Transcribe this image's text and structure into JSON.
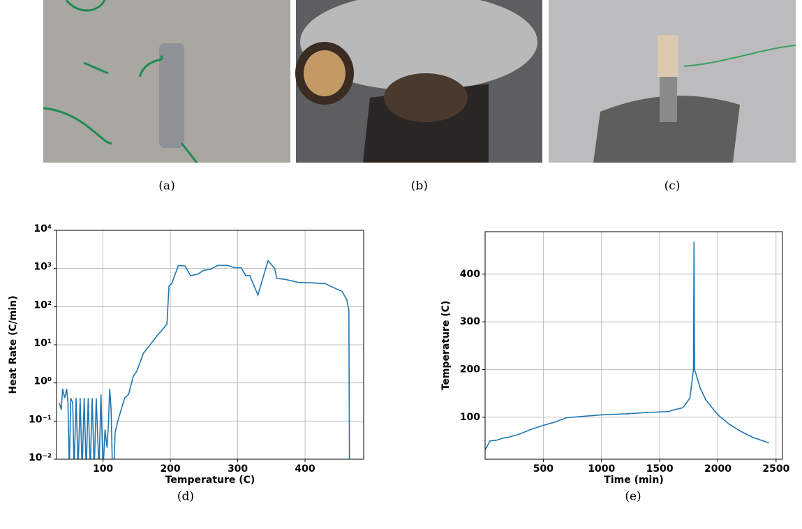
{
  "captions": [
    "(a)",
    "(b)",
    "(c)",
    "(d)",
    "(e)"
  ],
  "chart_data": [
    {
      "type": "line",
      "xlabel": "Temperature (C)",
      "ylabel": "Heat Rate (C/min)",
      "log_y": true,
      "grid": true,
      "xlim": [
        31,
        487
      ],
      "xticks": [
        100,
        200,
        300,
        400
      ],
      "ylim": [
        0.01,
        10000
      ],
      "yticks": [
        {
          "value": 0.01,
          "label": "10⁻²"
        },
        {
          "value": 0.1,
          "label": "10⁻¹"
        },
        {
          "value": 1,
          "label": "10⁰"
        },
        {
          "value": 10,
          "label": "10¹"
        },
        {
          "value": 100,
          "label": "10²"
        },
        {
          "value": 1000,
          "label": "10³"
        },
        {
          "value": 10000,
          "label": "10⁴"
        }
      ],
      "x": [
        35,
        38,
        40,
        43,
        46,
        48,
        50,
        52,
        55,
        57,
        60,
        63,
        66,
        69,
        72,
        75,
        78,
        81,
        84,
        87,
        90,
        94,
        97,
        100,
        103,
        106,
        108,
        110,
        112,
        114,
        116,
        118,
        122,
        127,
        132,
        138,
        145,
        150,
        160,
        170,
        180,
        190,
        195,
        198,
        202,
        212,
        222,
        230,
        240,
        250,
        260,
        270,
        285,
        295,
        305,
        312,
        318,
        330,
        345,
        355,
        358,
        370,
        390,
        410,
        430,
        445,
        455,
        462,
        465,
        466
      ],
      "series": [
        {
          "color": "#1f77b4",
          "values": [
            0.3,
            0.2,
            0.7,
            0.4,
            0.7,
            0.3,
            0.005,
            0.4,
            0.3,
            0.005,
            0.4,
            0.005,
            0.4,
            0.005,
            0.4,
            0.005,
            0.4,
            0.005,
            0.4,
            0.005,
            0.4,
            0.005,
            0.5,
            0.005,
            0.06,
            0.02,
            0.08,
            0.7,
            0.2,
            0.005,
            0.005,
            0.05,
            0.1,
            0.2,
            0.4,
            0.5,
            1.5,
            2,
            6,
            10,
            17,
            27,
            35,
            350,
            400,
            1200,
            1150,
            650,
            700,
            900,
            950,
            1200,
            1200,
            1050,
            1050,
            650,
            650,
            200,
            1600,
            1000,
            550,
            520,
            430,
            420,
            400,
            300,
            250,
            150,
            80,
            0.005
          ]
        }
      ]
    },
    {
      "type": "line",
      "xlabel": "Time (min)",
      "ylabel": "Temperature (C)",
      "grid": true,
      "xlim": [
        0,
        2555
      ],
      "xticks": [
        500,
        1000,
        1500,
        2000,
        2500
      ],
      "ylim": [
        12,
        489
      ],
      "yticks": [
        100,
        200,
        300,
        400
      ],
      "x": [
        0,
        20,
        40,
        100,
        150,
        200,
        300,
        400,
        500,
        600,
        700,
        800,
        1000,
        1200,
        1400,
        1580,
        1600,
        1700,
        1760,
        1790,
        1795,
        1800,
        1850,
        1900,
        2000,
        2100,
        2200,
        2300,
        2440
      ],
      "series": [
        {
          "color": "#1f77b4",
          "values": [
            32,
            40,
            50,
            52,
            56,
            58,
            65,
            75,
            83,
            90,
            99,
            101,
            105,
            107,
            110,
            112,
            114,
            120,
            140,
            200,
            468,
            200,
            160,
            135,
            105,
            85,
            70,
            58,
            46
          ]
        }
      ]
    }
  ]
}
